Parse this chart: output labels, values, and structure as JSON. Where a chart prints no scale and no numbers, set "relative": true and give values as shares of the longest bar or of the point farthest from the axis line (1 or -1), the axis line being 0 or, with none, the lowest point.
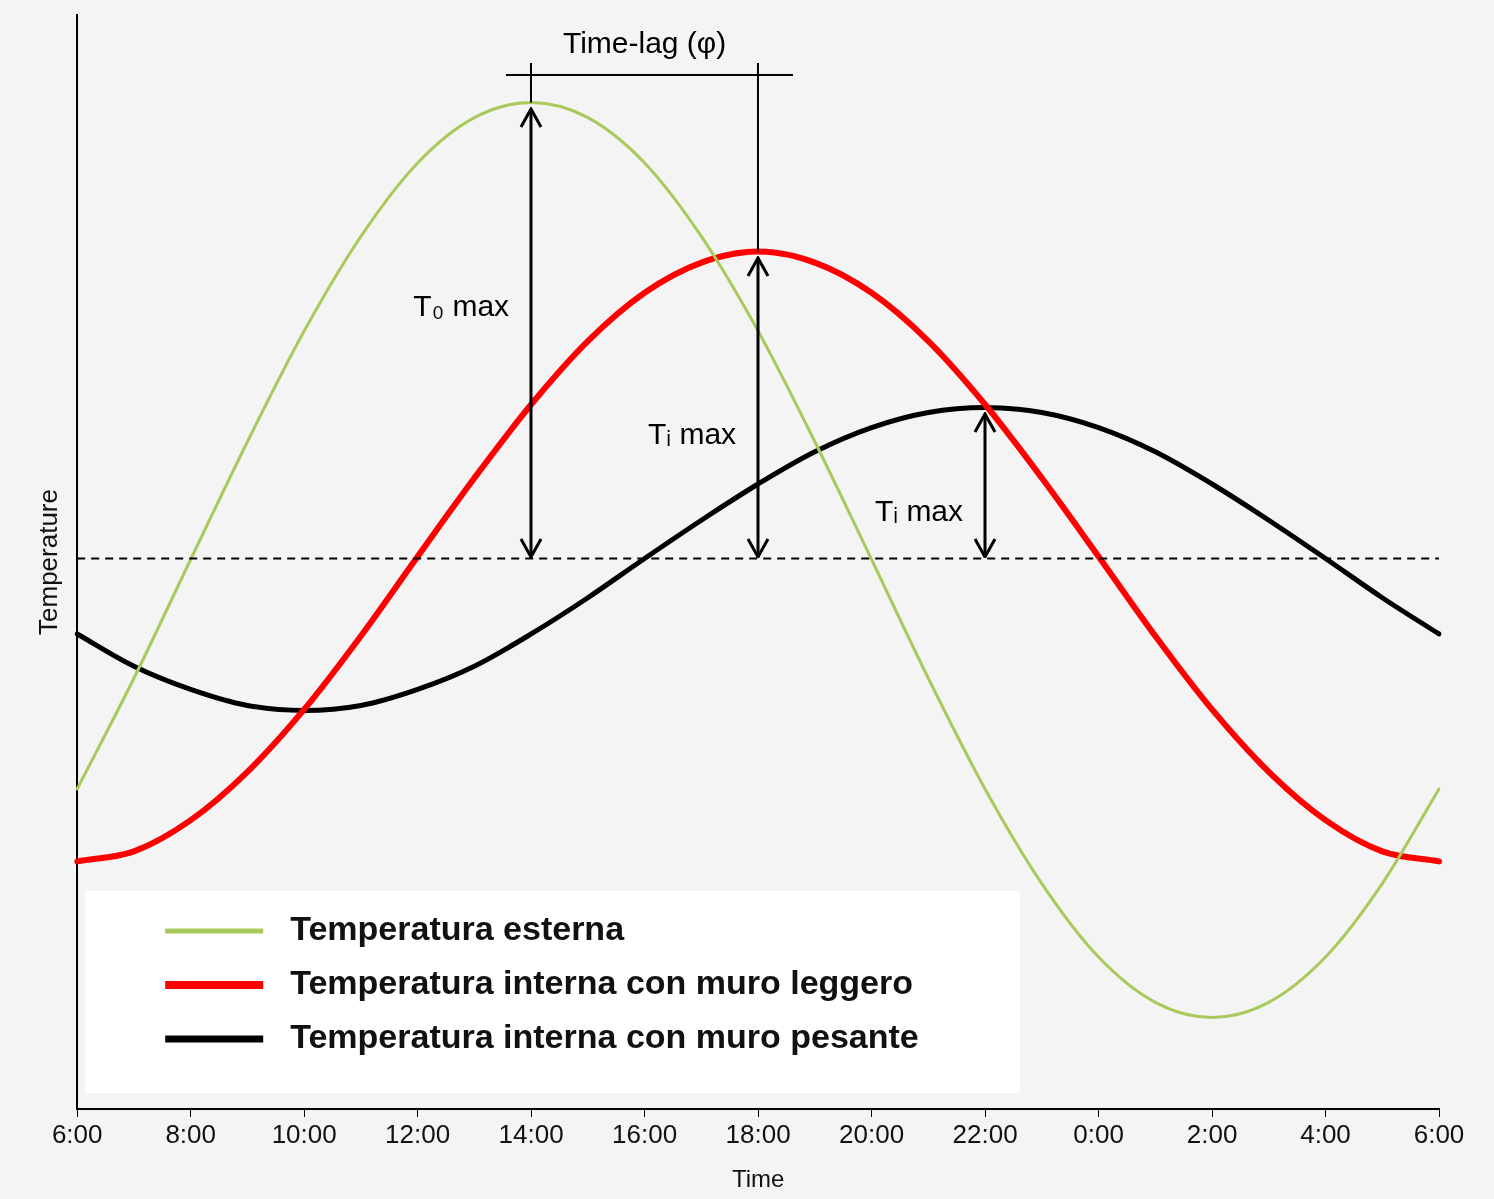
{
  "chart_data": {
    "type": "line",
    "relative": true,
    "xlabel": "Time",
    "ylabel": "Temperature",
    "categories": [
      "6:00",
      null,
      "8:00",
      null,
      "10:00",
      null,
      "12:00",
      null,
      "14:00",
      null,
      "16:00",
      null,
      "18:00",
      null,
      "20:00",
      null,
      "22:00",
      null,
      "0:00",
      null,
      "2:00",
      null,
      "4:00",
      null,
      "6:00"
    ],
    "series": [
      {
        "name": "Temperatura esterna",
        "color": "#a9c95c",
        "values": [
          0.318,
          0.428,
          0.546,
          0.663,
          0.773,
          0.867,
          0.94,
          0.985,
          1.0,
          0.985,
          0.94,
          0.867,
          0.773,
          0.663,
          0.546,
          0.428,
          0.318,
          0.224,
          0.151,
          0.106,
          0.091,
          0.106,
          0.151,
          0.224,
          0.318
        ]
      },
      {
        "name": "Temperatura interna con muro leggero",
        "color": "#ff0000",
        "values": [
          0.246,
          0.256,
          0.287,
          0.335,
          0.397,
          0.47,
          0.549,
          0.627,
          0.7,
          0.763,
          0.811,
          0.841,
          0.852,
          0.841,
          0.811,
          0.763,
          0.7,
          0.627,
          0.549,
          0.47,
          0.397,
          0.335,
          0.287,
          0.256,
          0.246
        ]
      },
      {
        "name": "Temperatura interna con muro pesante",
        "color": "#000000",
        "values": [
          0.472,
          0.44,
          0.417,
          0.401,
          0.396,
          0.401,
          0.417,
          0.44,
          0.472,
          0.508,
          0.547,
          0.585,
          0.621,
          0.653,
          0.677,
          0.692,
          0.697,
          0.692,
          0.677,
          0.653,
          0.621,
          0.585,
          0.547,
          0.508,
          0.472
        ]
      }
    ],
    "ref_lines": [
      {
        "axis": "y",
        "value": 0.547,
        "color": "#000000",
        "line_style": "dashed"
      }
    ],
    "annotations": [
      "Time-lag (φ)",
      "T₀ max",
      "Tᵢ max",
      "Tᵢ max"
    ],
    "legend": "bottom left",
    "grid": false,
    "marker": "none",
    "line_style": "solid"
  }
}
